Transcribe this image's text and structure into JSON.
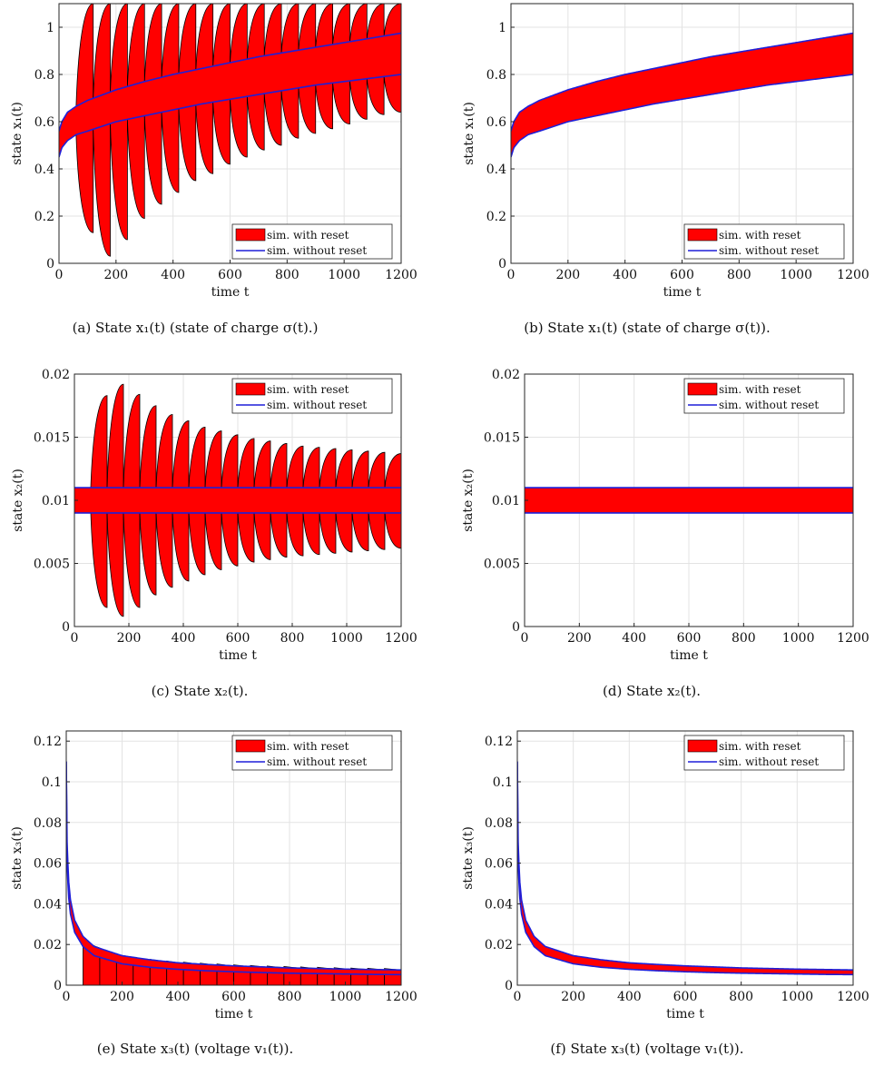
{
  "legend": {
    "with_reset": "sim. with reset",
    "without_reset": "sim. without reset",
    "with_reset_color": "#ff0000",
    "without_reset_color": "#1f1fd8"
  },
  "chart_data": [
    {
      "id": "a",
      "type": "area",
      "caption": "(a) State x₁(t) (state of charge σ(t).)",
      "xlabel": "time t",
      "ylabel": "state x₁(t)",
      "xlim": [
        0,
        1200
      ],
      "ylim": [
        0,
        1.1
      ],
      "xticks": [
        0,
        200,
        400,
        600,
        800,
        1000,
        1200
      ],
      "xtick_labels": [
        "0",
        "200",
        "400",
        "600",
        "800",
        "1000",
        "1200"
      ],
      "yticks": [
        0,
        0.2,
        0.4,
        0.6,
        0.8,
        1
      ],
      "ytick_labels": [
        "0",
        "0.2",
        "0.4",
        "0.6",
        "0.8",
        "1"
      ],
      "grid": true,
      "legend_position": "bottom-right",
      "reset_period": 60,
      "series": [
        {
          "name": "sim. without reset",
          "kind": "band",
          "x": [
            0,
            10,
            30,
            60,
            100,
            200,
            300,
            400,
            500,
            600,
            700,
            800,
            900,
            1000,
            1100,
            1200
          ],
          "upper": [
            0.56,
            0.6,
            0.64,
            0.665,
            0.69,
            0.735,
            0.77,
            0.8,
            0.825,
            0.85,
            0.875,
            0.895,
            0.915,
            0.935,
            0.955,
            0.975
          ],
          "lower": [
            0.45,
            0.49,
            0.52,
            0.545,
            0.56,
            0.6,
            0.625,
            0.65,
            0.675,
            0.695,
            0.715,
            0.735,
            0.755,
            0.77,
            0.785,
            0.8
          ]
        },
        {
          "name": "sim. with reset",
          "kind": "reset-lobes",
          "segment_end_x": [
            120,
            180,
            240,
            300,
            360,
            420,
            480,
            540,
            600,
            660,
            720,
            780,
            840,
            900,
            960,
            1020,
            1080,
            1140,
            1200
          ],
          "segment_end_upper": [
            1.1,
            1.1,
            1.1,
            1.1,
            1.1,
            1.1,
            1.1,
            1.1,
            1.1,
            1.1,
            1.1,
            1.1,
            1.1,
            1.1,
            1.1,
            1.1,
            1.1,
            1.1,
            1.1
          ],
          "segment_end_lower": [
            0.13,
            0.03,
            0.1,
            0.19,
            0.25,
            0.3,
            0.35,
            0.38,
            0.42,
            0.45,
            0.48,
            0.5,
            0.53,
            0.55,
            0.57,
            0.59,
            0.61,
            0.63,
            0.64
          ]
        }
      ]
    },
    {
      "id": "b",
      "type": "area",
      "caption": "(b) State x₁(t) (state of charge σ(t)).",
      "xlabel": "time t",
      "ylabel": "state x₁(t)",
      "xlim": [
        0,
        1200
      ],
      "ylim": [
        0,
        1.1
      ],
      "xticks": [
        0,
        200,
        400,
        600,
        800,
        1000,
        1200
      ],
      "xtick_labels": [
        "0",
        "200",
        "400",
        "600",
        "800",
        "1000",
        "1200"
      ],
      "yticks": [
        0,
        0.2,
        0.4,
        0.6,
        0.8,
        1
      ],
      "ytick_labels": [
        "0",
        "0.2",
        "0.4",
        "0.6",
        "0.8",
        "1"
      ],
      "grid": true,
      "legend_position": "bottom-right",
      "series": [
        {
          "name": "sim. without reset",
          "kind": "band",
          "x": [
            0,
            10,
            30,
            60,
            100,
            200,
            300,
            400,
            500,
            600,
            700,
            800,
            900,
            1000,
            1100,
            1200
          ],
          "upper": [
            0.56,
            0.6,
            0.64,
            0.665,
            0.69,
            0.735,
            0.77,
            0.8,
            0.825,
            0.85,
            0.875,
            0.895,
            0.915,
            0.935,
            0.955,
            0.975
          ],
          "lower": [
            0.45,
            0.49,
            0.52,
            0.545,
            0.56,
            0.6,
            0.625,
            0.65,
            0.675,
            0.695,
            0.715,
            0.735,
            0.755,
            0.77,
            0.785,
            0.8
          ]
        }
      ]
    },
    {
      "id": "c",
      "type": "area",
      "caption": "(c) State x₂(t).",
      "xlabel": "time t",
      "ylabel": "state x₂(t)",
      "xlim": [
        0,
        1200
      ],
      "ylim": [
        0,
        0.02
      ],
      "xticks": [
        0,
        200,
        400,
        600,
        800,
        1000,
        1200
      ],
      "xtick_labels": [
        "0",
        "200",
        "400",
        "600",
        "800",
        "1000",
        "1200"
      ],
      "yticks": [
        0,
        0.005,
        0.01,
        0.015,
        0.02
      ],
      "ytick_labels": [
        "0",
        "0.005",
        "0.01",
        "0.015",
        "0.02"
      ],
      "grid": true,
      "legend_position": "top-right",
      "reset_period": 60,
      "series": [
        {
          "name": "sim. without reset",
          "kind": "band",
          "x": [
            0,
            1200
          ],
          "upper": [
            0.011,
            0.011
          ],
          "lower": [
            0.009,
            0.009
          ]
        },
        {
          "name": "sim. with reset",
          "kind": "reset-lobes",
          "segment_end_x": [
            120,
            180,
            240,
            300,
            360,
            420,
            480,
            540,
            600,
            660,
            720,
            780,
            840,
            900,
            960,
            1020,
            1080,
            1140,
            1200
          ],
          "segment_end_upper": [
            0.0183,
            0.0192,
            0.0184,
            0.0175,
            0.0168,
            0.0163,
            0.0158,
            0.0155,
            0.0152,
            0.0149,
            0.0147,
            0.0145,
            0.0143,
            0.0142,
            0.0141,
            0.014,
            0.0139,
            0.0138,
            0.0137
          ],
          "segment_end_lower": [
            0.0015,
            0.0008,
            0.0015,
            0.0025,
            0.0031,
            0.0036,
            0.0041,
            0.0045,
            0.0048,
            0.0051,
            0.0053,
            0.0055,
            0.0056,
            0.0057,
            0.0058,
            0.0059,
            0.006,
            0.0061,
            0.0062
          ]
        }
      ]
    },
    {
      "id": "d",
      "type": "area",
      "caption": "(d) State x₂(t).",
      "xlabel": "time t",
      "ylabel": "state x₂(t)",
      "xlim": [
        0,
        1200
      ],
      "ylim": [
        0,
        0.02
      ],
      "xticks": [
        0,
        200,
        400,
        600,
        800,
        1000,
        1200
      ],
      "xtick_labels": [
        "0",
        "200",
        "400",
        "600",
        "800",
        "1000",
        "1200"
      ],
      "yticks": [
        0,
        0.005,
        0.01,
        0.015,
        0.02
      ],
      "ytick_labels": [
        "0",
        "0.005",
        "0.01",
        "0.015",
        "0.02"
      ],
      "grid": true,
      "legend_position": "top-right",
      "series": [
        {
          "name": "sim. without reset",
          "kind": "band",
          "x": [
            0,
            1200
          ],
          "upper": [
            0.011,
            0.011
          ],
          "lower": [
            0.009,
            0.009
          ]
        }
      ]
    },
    {
      "id": "e",
      "type": "area",
      "caption": "(e) State x₃(t) (voltage v₁(t)).",
      "xlabel": "time t",
      "ylabel": "state x₃(t)",
      "xlim": [
        0,
        1200
      ],
      "ylim": [
        0,
        0.125
      ],
      "xticks": [
        0,
        200,
        400,
        600,
        800,
        1000,
        1200
      ],
      "xtick_labels": [
        "0",
        "200",
        "400",
        "600",
        "800",
        "1000",
        "1200"
      ],
      "yticks": [
        0,
        0.02,
        0.04,
        0.06,
        0.08,
        0.1,
        0.12
      ],
      "ytick_labels": [
        "0",
        "0.02",
        "0.04",
        "0.06",
        "0.08",
        "0.1",
        "0.12"
      ],
      "grid": true,
      "legend_position": "top-right",
      "reset_period": 60,
      "series": [
        {
          "name": "sim. without reset",
          "kind": "band",
          "x": [
            0,
            3,
            8,
            15,
            30,
            60,
            100,
            200,
            300,
            400,
            500,
            600,
            700,
            800,
            900,
            1000,
            1100,
            1200
          ],
          "upper": [
            0.11,
            0.07,
            0.052,
            0.042,
            0.032,
            0.024,
            0.019,
            0.0145,
            0.0125,
            0.011,
            0.0102,
            0.0095,
            0.009,
            0.0085,
            0.0082,
            0.0079,
            0.0077,
            0.0075
          ],
          "lower": [
            0.11,
            0.06,
            0.044,
            0.035,
            0.026,
            0.019,
            0.0145,
            0.0105,
            0.0088,
            0.0078,
            0.0071,
            0.0066,
            0.0062,
            0.0059,
            0.0057,
            0.0055,
            0.0053,
            0.0052
          ]
        },
        {
          "name": "sim. with reset",
          "kind": "reset-steps",
          "segment_start_x": [
            60,
            120,
            180,
            240,
            300,
            360,
            420,
            480,
            540,
            600,
            660,
            720,
            780,
            840,
            900,
            960,
            1020,
            1080,
            1140
          ],
          "segment_start_upper": [
            0.0225,
            0.0175,
            0.0152,
            0.0137,
            0.0127,
            0.0119,
            0.0113,
            0.0108,
            0.0104,
            0.01,
            0.0097,
            0.0094,
            0.0092,
            0.009,
            0.0088,
            0.0086,
            0.0084,
            0.0083,
            0.0082
          ]
        }
      ]
    },
    {
      "id": "f",
      "type": "area",
      "caption": "(f) State x₃(t) (voltage v₁(t)).",
      "xlabel": "time t",
      "ylabel": "state x₃(t)",
      "xlim": [
        0,
        1200
      ],
      "ylim": [
        0,
        0.125
      ],
      "xticks": [
        0,
        200,
        400,
        600,
        800,
        1000,
        1200
      ],
      "xtick_labels": [
        "0",
        "200",
        "400",
        "600",
        "800",
        "1000",
        "1200"
      ],
      "yticks": [
        0,
        0.02,
        0.04,
        0.06,
        0.08,
        0.1,
        0.12
      ],
      "ytick_labels": [
        "0",
        "0.02",
        "0.04",
        "0.06",
        "0.08",
        "0.1",
        "0.12"
      ],
      "grid": true,
      "legend_position": "top-right",
      "series": [
        {
          "name": "sim. without reset",
          "kind": "band",
          "x": [
            0,
            3,
            8,
            15,
            30,
            60,
            100,
            200,
            300,
            400,
            500,
            600,
            700,
            800,
            900,
            1000,
            1100,
            1200
          ],
          "upper": [
            0.11,
            0.07,
            0.052,
            0.042,
            0.032,
            0.024,
            0.019,
            0.0145,
            0.0125,
            0.011,
            0.0102,
            0.0095,
            0.009,
            0.0085,
            0.0082,
            0.0079,
            0.0077,
            0.0075
          ],
          "lower": [
            0.11,
            0.06,
            0.044,
            0.035,
            0.026,
            0.019,
            0.0145,
            0.0105,
            0.0088,
            0.0078,
            0.0071,
            0.0066,
            0.0062,
            0.0059,
            0.0057,
            0.0055,
            0.0053,
            0.0052
          ]
        }
      ]
    }
  ]
}
